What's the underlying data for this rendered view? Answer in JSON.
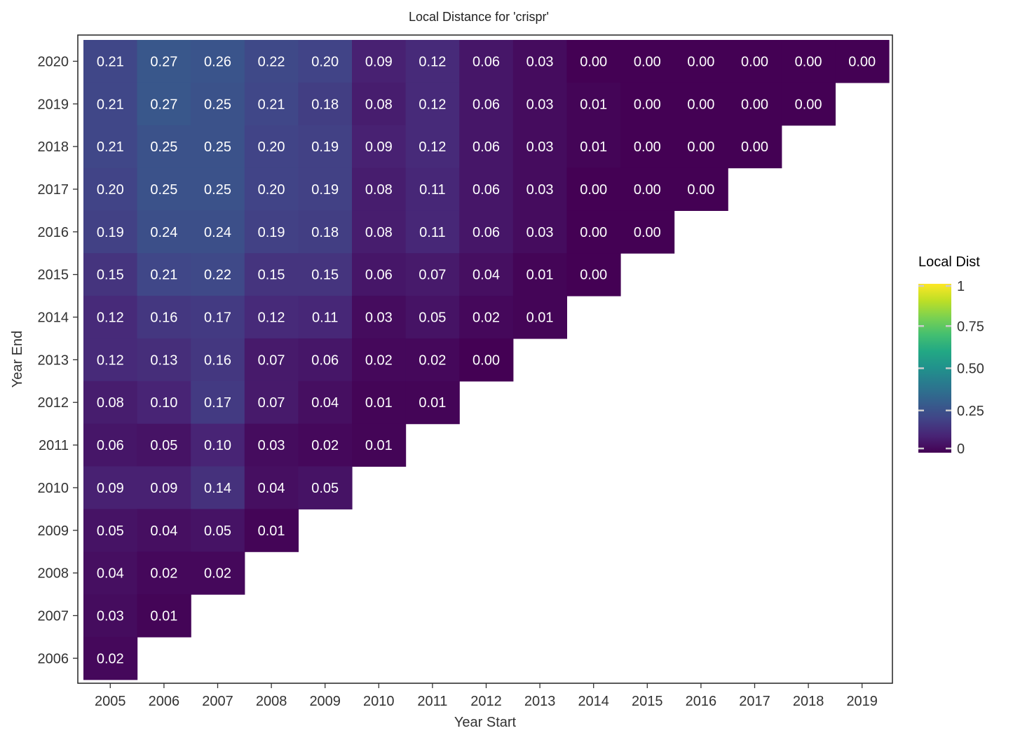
{
  "chart_data": {
    "type": "heatmap",
    "title": "Local Distance for 'crispr'",
    "xlabel": "Year Start",
    "ylabel": "Year End",
    "x": [
      "2005",
      "2006",
      "2007",
      "2008",
      "2009",
      "2010",
      "2011",
      "2012",
      "2013",
      "2014",
      "2015",
      "2016",
      "2017",
      "2018",
      "2019"
    ],
    "y": [
      "2020",
      "2019",
      "2018",
      "2017",
      "2016",
      "2015",
      "2014",
      "2013",
      "2012",
      "2011",
      "2010",
      "2009",
      "2008",
      "2007",
      "2006"
    ],
    "values": [
      [
        0.21,
        0.27,
        0.26,
        0.22,
        0.2,
        0.09,
        0.12,
        0.06,
        0.03,
        0.0,
        0.0,
        0.0,
        0.0,
        0.0,
        0.0
      ],
      [
        0.21,
        0.27,
        0.25,
        0.21,
        0.18,
        0.08,
        0.12,
        0.06,
        0.03,
        0.01,
        0.0,
        0.0,
        0.0,
        0.0
      ],
      [
        0.21,
        0.25,
        0.25,
        0.2,
        0.19,
        0.09,
        0.12,
        0.06,
        0.03,
        0.01,
        0.0,
        0.0,
        0.0
      ],
      [
        0.2,
        0.25,
        0.25,
        0.2,
        0.19,
        0.08,
        0.11,
        0.06,
        0.03,
        0.0,
        0.0,
        0.0
      ],
      [
        0.19,
        0.24,
        0.24,
        0.19,
        0.18,
        0.08,
        0.11,
        0.06,
        0.03,
        0.0,
        0.0
      ],
      [
        0.15,
        0.21,
        0.22,
        0.15,
        0.15,
        0.06,
        0.07,
        0.04,
        0.01,
        0.0
      ],
      [
        0.12,
        0.16,
        0.17,
        0.12,
        0.11,
        0.03,
        0.05,
        0.02,
        0.01
      ],
      [
        0.12,
        0.13,
        0.16,
        0.07,
        0.06,
        0.02,
        0.02,
        0.0
      ],
      [
        0.08,
        0.1,
        0.17,
        0.07,
        0.04,
        0.01,
        0.01
      ],
      [
        0.06,
        0.05,
        0.1,
        0.03,
        0.02,
        0.01
      ],
      [
        0.09,
        0.09,
        0.14,
        0.04,
        0.05
      ],
      [
        0.05,
        0.04,
        0.05,
        0.01
      ],
      [
        0.04,
        0.02,
        0.02
      ],
      [
        0.03,
        0.01
      ],
      [
        0.02
      ]
    ],
    "value_format_decimals": 2,
    "colormap": "viridis",
    "color_range": [
      0,
      1
    ],
    "legend": {
      "title": "Local Dist",
      "position": "right",
      "ticks": [
        0,
        0.25,
        0.5,
        0.75,
        1
      ],
      "tick_labels": [
        "0",
        "0.25",
        "0.50",
        "0.75",
        "1"
      ]
    },
    "grid": false
  }
}
